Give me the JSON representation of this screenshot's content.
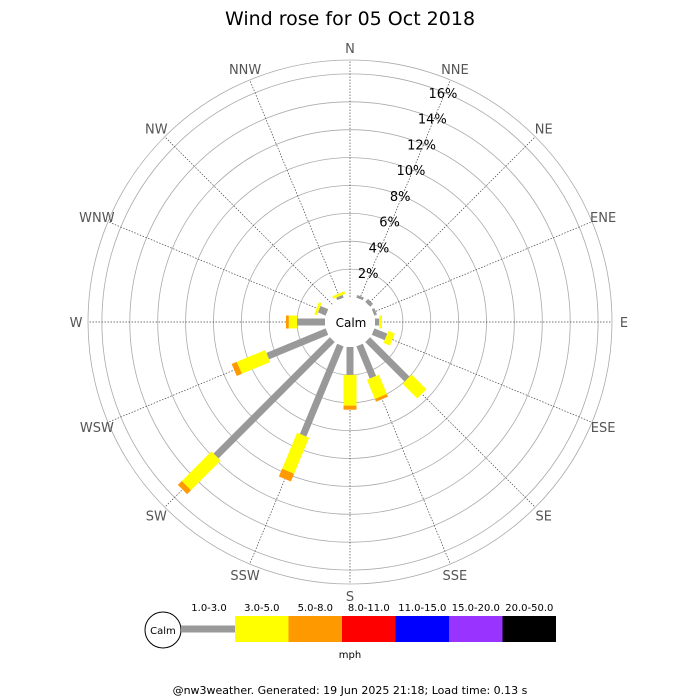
{
  "chart_data": {
    "type": "windrose",
    "title": "Wind rose for 05 Oct 2018",
    "calm_label": "Calm",
    "directions": [
      "N",
      "NNE",
      "NE",
      "ENE",
      "E",
      "ESE",
      "SE",
      "SSE",
      "S",
      "SSW",
      "SW",
      "WSW",
      "W",
      "WNW",
      "NW",
      "NNW"
    ],
    "ring_labels": [
      "2%",
      "4%",
      "6%",
      "8%",
      "10%",
      "12%",
      "14%",
      "16%"
    ],
    "rmax": 17,
    "speed_bins": [
      {
        "label": "1.0-3.0",
        "color": "#999999"
      },
      {
        "label": "3.0-5.0",
        "color": "#ffff00"
      },
      {
        "label": "5.0-8.0",
        "color": "#ff9900"
      },
      {
        "label": "8.0-11.0",
        "color": "#ff0000"
      },
      {
        "label": "11.0-15.0",
        "color": "#0000ff"
      },
      {
        "label": "15.0-20.0",
        "color": "#9933ff"
      },
      {
        "label": "20.0-50.0",
        "color": "#000000"
      }
    ],
    "units": "mph",
    "series": [
      {
        "dir": "N",
        "values": [
          0,
          0,
          0,
          0,
          0,
          0,
          0
        ]
      },
      {
        "dir": "NNE",
        "values": [
          0.2,
          0,
          0,
          0,
          0,
          0,
          0
        ]
      },
      {
        "dir": "NE",
        "values": [
          0.3,
          0,
          0,
          0,
          0,
          0,
          0
        ]
      },
      {
        "dir": "ENE",
        "values": [
          0.2,
          0,
          0,
          0,
          0,
          0,
          0
        ]
      },
      {
        "dir": "E",
        "values": [
          0.3,
          0.2,
          0,
          0,
          0,
          0,
          0
        ]
      },
      {
        "dir": "ESE",
        "values": [
          1.0,
          0.5,
          0,
          0,
          0,
          0,
          0
        ]
      },
      {
        "dir": "SE",
        "values": [
          4.0,
          1.5,
          0,
          0,
          0,
          0,
          0
        ]
      },
      {
        "dir": "SSE",
        "values": [
          2.5,
          1.5,
          0.2,
          0,
          0,
          0,
          0
        ]
      },
      {
        "dir": "S",
        "values": [
          2.0,
          2.2,
          0.3,
          0,
          0,
          0,
          0
        ]
      },
      {
        "dir": "SSW",
        "values": [
          7.0,
          2.8,
          0.6,
          0,
          0,
          0,
          0
        ]
      },
      {
        "dir": "SW",
        "values": [
          11.8,
          3.0,
          0.4,
          0,
          0,
          0,
          0
        ]
      },
      {
        "dir": "WSW",
        "values": [
          4.6,
          2.2,
          0.4,
          0,
          0,
          0,
          0
        ]
      },
      {
        "dir": "W",
        "values": [
          2.0,
          0.6,
          0.2,
          0,
          0,
          0,
          0
        ]
      },
      {
        "dir": "WNW",
        "values": [
          0.6,
          0.2,
          0,
          0,
          0,
          0,
          0
        ]
      },
      {
        "dir": "NW",
        "values": [
          0,
          0,
          0,
          0,
          0,
          0,
          0
        ]
      },
      {
        "dir": "NNW",
        "values": [
          0.2,
          0.2,
          0,
          0,
          0,
          0,
          0
        ]
      }
    ]
  },
  "footer": "@nw3weather. Generated: 19 Jun 2025 21:18; Load time: 0.13 s"
}
